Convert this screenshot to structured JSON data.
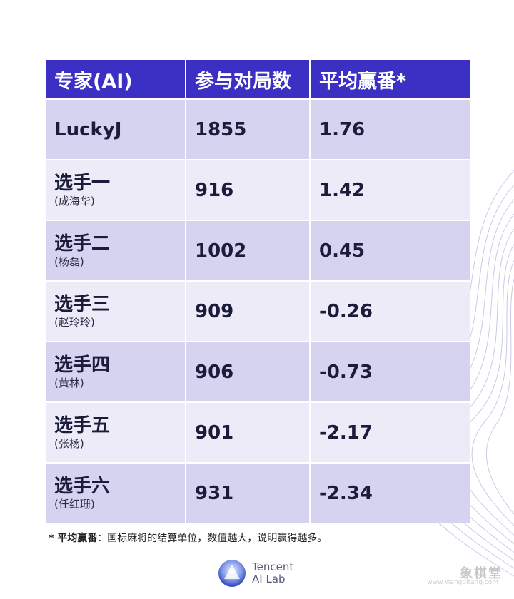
{
  "table": {
    "headers": [
      "专家(AI)",
      "参与对局数",
      "平均赢番*"
    ],
    "rows": [
      {
        "name": "LuckyJ",
        "sub": "",
        "games": "1855",
        "avg": "1.76"
      },
      {
        "name": "选手一",
        "sub": "(成海华)",
        "games": "916",
        "avg": "1.42"
      },
      {
        "name": "选手二",
        "sub": "(杨磊)",
        "games": "1002",
        "avg": "0.45"
      },
      {
        "name": "选手三",
        "sub": "(赵玲玲)",
        "games": "909",
        "avg": "-0.26"
      },
      {
        "name": "选手四",
        "sub": "(黄林)",
        "games": "906",
        "avg": "-0.73"
      },
      {
        "name": "选手五",
        "sub": "(张杨)",
        "games": "901",
        "avg": "-2.17"
      },
      {
        "name": "选手六",
        "sub": "(任红珊)",
        "games": "931",
        "avg": "-2.34"
      }
    ]
  },
  "footnote": {
    "term": "* 平均赢番",
    "text": "：国标麻将的结算单位，数值越大，说明赢得越多。"
  },
  "logo": {
    "line1": "Tencent",
    "line2": "AI Lab"
  },
  "watermark": {
    "text": "象棋堂",
    "sub": "www.xiangqitang.com"
  },
  "colors": {
    "header_bg": "#3b2fc4",
    "row_dark": "#d5d3ef",
    "row_light": "#ecebf7"
  }
}
